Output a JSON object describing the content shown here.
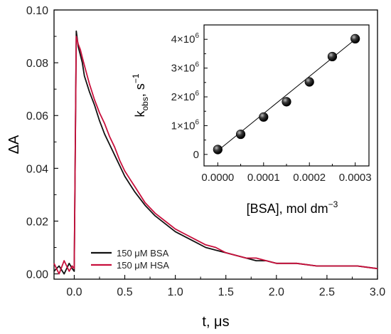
{
  "chart_data": [
    {
      "type": "line",
      "role": "main",
      "xlabel": "t, μs",
      "ylabel": "ΔA",
      "xlim": [
        -0.2,
        3.0
      ],
      "ylim": [
        -0.002,
        0.1
      ],
      "xticks": [
        0.0,
        0.5,
        1.0,
        1.5,
        2.0,
        2.5,
        3.0
      ],
      "xtick_labels": [
        "0.0",
        "0.5",
        "1.0",
        "1.5",
        "2.0",
        "2.5",
        "3.0"
      ],
      "yticks": [
        0.0,
        0.02,
        0.04,
        0.06,
        0.08,
        0.1
      ],
      "ytick_labels": [
        "0.00",
        "0.02",
        "0.04",
        "0.06",
        "0.08",
        "0.10"
      ],
      "legend_position": "bottom-left",
      "series": [
        {
          "name": "150 μM BSA",
          "color": "#111111",
          "x": [
            -0.2,
            -0.15,
            -0.1,
            -0.05,
            -0.02,
            0.0,
            0.02,
            0.04,
            0.06,
            0.08,
            0.1,
            0.15,
            0.2,
            0.25,
            0.3,
            0.35,
            0.4,
            0.45,
            0.5,
            0.55,
            0.6,
            0.7,
            0.8,
            0.9,
            1.0,
            1.1,
            1.2,
            1.3,
            1.4,
            1.5,
            1.6,
            1.7,
            1.8,
            1.9,
            2.0,
            2.2,
            2.4,
            2.6,
            2.8,
            3.0
          ],
          "y": [
            0.001,
            0.003,
            0.0,
            0.004,
            0.002,
            0.001,
            0.092,
            0.086,
            0.083,
            0.08,
            0.075,
            0.069,
            0.064,
            0.058,
            0.053,
            0.049,
            0.045,
            0.041,
            0.037,
            0.034,
            0.031,
            0.026,
            0.022,
            0.019,
            0.016,
            0.014,
            0.012,
            0.01,
            0.009,
            0.008,
            0.007,
            0.006,
            0.005,
            0.005,
            0.004,
            0.004,
            0.003,
            0.003,
            0.003,
            0.002
          ]
        },
        {
          "name": "150 μM HSA",
          "color": "#c8103c",
          "x": [
            -0.2,
            -0.15,
            -0.1,
            -0.05,
            -0.02,
            0.0,
            0.02,
            0.04,
            0.06,
            0.08,
            0.1,
            0.15,
            0.2,
            0.25,
            0.3,
            0.35,
            0.4,
            0.45,
            0.5,
            0.55,
            0.6,
            0.7,
            0.8,
            0.9,
            1.0,
            1.1,
            1.2,
            1.3,
            1.4,
            1.5,
            1.6,
            1.7,
            1.8,
            1.9,
            2.0,
            2.2,
            2.4,
            2.6,
            2.8,
            3.0
          ],
          "y": [
            0.004,
            0.0,
            0.005,
            0.001,
            0.003,
            0.002,
            0.09,
            0.087,
            0.085,
            0.082,
            0.079,
            0.072,
            0.066,
            0.061,
            0.057,
            0.052,
            0.048,
            0.043,
            0.039,
            0.036,
            0.033,
            0.027,
            0.023,
            0.02,
            0.017,
            0.015,
            0.013,
            0.011,
            0.01,
            0.008,
            0.007,
            0.006,
            0.006,
            0.005,
            0.004,
            0.004,
            0.003,
            0.003,
            0.003,
            0.002
          ]
        }
      ]
    },
    {
      "type": "scatter",
      "role": "inset",
      "xlabel": "[BSA], mol dm",
      "xlabel_sup": "−3",
      "ylabel": "k",
      "ylabel_sub": "obs",
      "ylabel_tail": ", s",
      "ylabel_sup": "−1",
      "xlim": [
        -3e-05,
        0.00033
      ],
      "ylim": [
        -400000,
        4500000
      ],
      "xticks": [
        0.0,
        0.0001,
        0.0002,
        0.0003
      ],
      "xtick_labels": [
        "0.0000",
        "0.0001",
        "0.0002",
        "0.0003"
      ],
      "x_minor_ticks": [
        5e-05,
        0.00015,
        0.00025
      ],
      "yticks": [
        0,
        1000000,
        2000000,
        3000000,
        4000000
      ],
      "ytick_labels": [
        "0",
        "1×10",
        "2×10",
        "3×10",
        "4×10"
      ],
      "ytick_exp": "6",
      "series": [
        {
          "x": [
            0.0,
            5e-05,
            0.0001,
            0.00015,
            0.0002,
            0.00025,
            0.0003
          ],
          "y": [
            170000,
            700000,
            1300000,
            1830000,
            2520000,
            3400000,
            4020000
          ]
        }
      ],
      "fit": {
        "x": [
          0.0,
          0.0003
        ],
        "y": [
          130000,
          4000000
        ]
      }
    }
  ]
}
